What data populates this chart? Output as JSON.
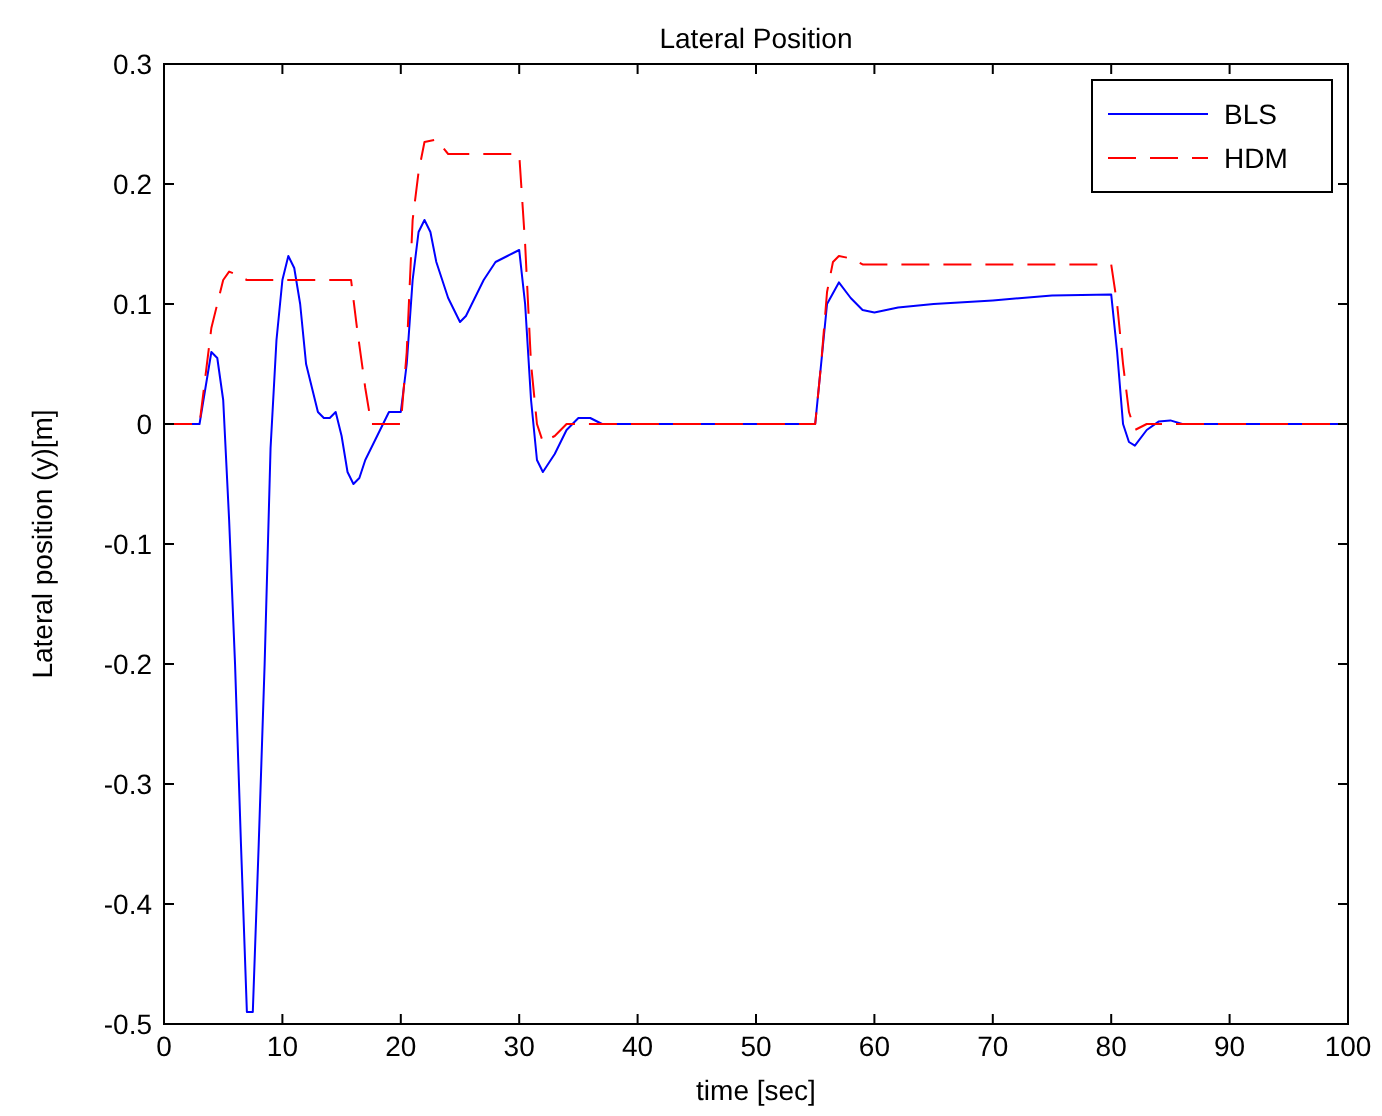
{
  "chart_data": {
    "type": "line",
    "title": "Lateral Position",
    "xlabel": "time [sec]",
    "ylabel": "Lateral position (y)[m]",
    "xlim": [
      0,
      100
    ],
    "ylim": [
      -0.5,
      0.3
    ],
    "xticks": [
      0,
      10,
      20,
      30,
      40,
      50,
      60,
      70,
      80,
      90,
      100
    ],
    "yticks": [
      -0.5,
      -0.4,
      -0.3,
      -0.2,
      -0.1,
      {
        "value": 0,
        "label": "0"
      },
      0.1,
      0.2,
      0.3
    ],
    "grid": false,
    "legend": "top right",
    "series": [
      {
        "name": "BLS",
        "color": "#0000ff",
        "line_style": "solid",
        "x": [
          0,
          3,
          3.5,
          4,
          4.5,
          5,
          5.5,
          6,
          6.5,
          7,
          7.5,
          8,
          8.5,
          9,
          9.5,
          10,
          10.5,
          11,
          11.5,
          12,
          12.5,
          13,
          13.5,
          14,
          14.5,
          15,
          15.5,
          16,
          16.5,
          17,
          18,
          19,
          20,
          20.5,
          21,
          21.5,
          22,
          22.5,
          23,
          24,
          25,
          25.5,
          26,
          27,
          28,
          29,
          30,
          30.5,
          31,
          31.5,
          32,
          33,
          34,
          35,
          36,
          37,
          55,
          55.5,
          56,
          57,
          58,
          59,
          60,
          62,
          65,
          70,
          75,
          80,
          80.5,
          81,
          81.5,
          82,
          83,
          84,
          85,
          86,
          100
        ],
        "values": [
          0,
          0,
          0.03,
          0.06,
          0.055,
          0.02,
          -0.08,
          -0.2,
          -0.35,
          -0.49,
          -0.49,
          -0.35,
          -0.2,
          -0.02,
          0.07,
          0.12,
          0.14,
          0.13,
          0.1,
          0.05,
          0.03,
          0.01,
          0.005,
          0.005,
          0.01,
          -0.01,
          -0.04,
          -0.05,
          -0.045,
          -0.03,
          -0.01,
          0.01,
          0.01,
          0.05,
          0.12,
          0.16,
          0.17,
          0.16,
          0.135,
          0.105,
          0.085,
          0.09,
          0.1,
          0.12,
          0.135,
          0.14,
          0.145,
          0.1,
          0.02,
          -0.03,
          -0.04,
          -0.025,
          -0.005,
          0.005,
          0.005,
          0,
          0,
          0.05,
          0.1,
          0.118,
          0.105,
          0.095,
          0.093,
          0.097,
          0.1,
          0.103,
          0.107,
          0.108,
          0.06,
          0,
          -0.015,
          -0.018,
          -0.005,
          0.002,
          0.003,
          0,
          0
        ]
      },
      {
        "name": "HDM",
        "color": "#ff0000",
        "line_style": "dashed",
        "x": [
          0,
          3,
          3.5,
          4,
          4.5,
          5,
          5.5,
          6,
          7,
          15.8,
          16.3,
          17,
          17.5,
          19,
          20,
          20.5,
          21,
          21.5,
          22,
          23,
          24,
          30,
          30.5,
          31,
          31.5,
          32,
          33,
          34,
          55,
          55.5,
          56,
          56.5,
          57,
          58,
          59,
          80,
          80.5,
          81,
          81.5,
          82,
          83,
          100
        ],
        "values": [
          0,
          0,
          0.04,
          0.08,
          0.1,
          0.12,
          0.127,
          0.125,
          0.12,
          0.12,
          0.08,
          0.03,
          0,
          0,
          0,
          0.06,
          0.17,
          0.21,
          0.235,
          0.237,
          0.225,
          0.225,
          0.15,
          0.05,
          0,
          -0.015,
          -0.01,
          0,
          0,
          0.05,
          0.11,
          0.135,
          0.14,
          0.138,
          0.133,
          0.133,
          0.1,
          0.05,
          0.01,
          -0.005,
          0,
          0
        ]
      }
    ]
  }
}
